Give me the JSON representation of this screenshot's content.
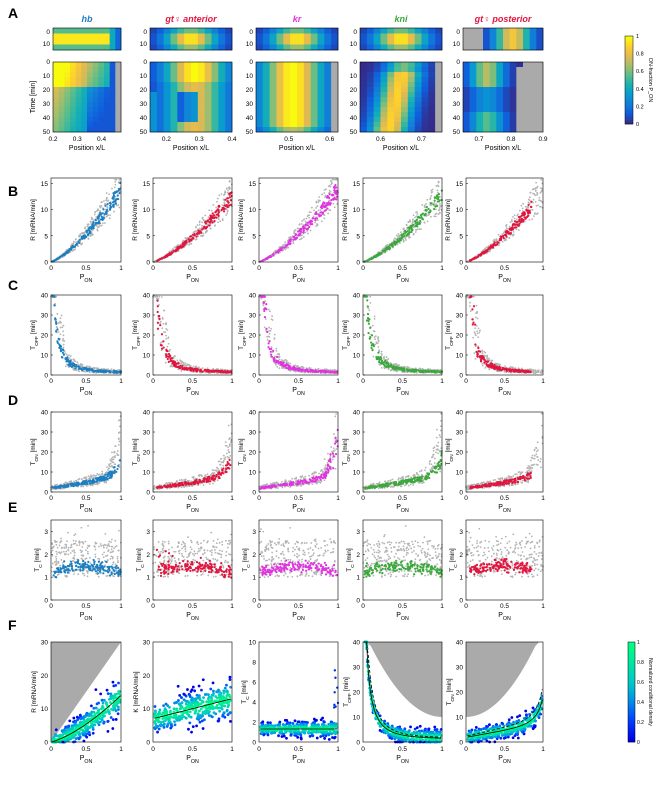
{
  "figure": {
    "panel_letters": [
      "A",
      "B",
      "C",
      "D",
      "E",
      "F"
    ],
    "gene_titles": [
      {
        "text": "hb",
        "color": "#1b7fc1"
      },
      {
        "text": "gt♀ anterior",
        "color": "#e0163f"
      },
      {
        "text": "kr",
        "color": "#e034e0"
      },
      {
        "text": "kni",
        "color": "#3aa83a"
      },
      {
        "text": "gt♀ posterior",
        "color": "#e0163f"
      }
    ],
    "gene_colors": [
      "#1b7fc1",
      "#e0163f",
      "#e034e0",
      "#3aa83a",
      "#e0163f"
    ],
    "background_color": "#aaaaaa",
    "colorbar_A": {
      "label": "ON-fraction P_ON",
      "ticks": [
        "0",
        "0.2",
        "0.4",
        "0.6",
        "0.8",
        "1"
      ]
    },
    "colorbar_F": {
      "label": "Normalized conditional density",
      "ticks": [
        "0",
        "0.2",
        "0.4",
        "0.6",
        "0.8",
        "1"
      ]
    }
  },
  "chart_data": [
    {
      "type": "heatmap",
      "row": "A",
      "gene": "hb",
      "xlabel": "Position x/L",
      "ylabel": "Time [min]",
      "xlim": [
        0.2,
        0.48
      ],
      "xticks": [
        "0.2",
        "0.3",
        "0.4"
      ],
      "top_yticks": [
        "0",
        "10"
      ],
      "bottom_yticks": [
        "0",
        "10",
        "20",
        "30",
        "40",
        "50"
      ]
    },
    {
      "type": "heatmap",
      "row": "A",
      "gene": "gt♀ anterior",
      "xlabel": "Position x/L",
      "ylabel": "",
      "xlim": [
        0.15,
        0.4
      ],
      "xticks": [
        "0.2",
        "0.3",
        "0.4"
      ],
      "top_yticks": [
        "0",
        "10"
      ],
      "bottom_yticks": [
        "0",
        "10",
        "20",
        "30",
        "40",
        "50"
      ]
    },
    {
      "type": "heatmap",
      "row": "A",
      "gene": "kr",
      "xlabel": "Position x/L",
      "ylabel": "",
      "xlim": [
        0.42,
        0.62
      ],
      "xticks": [
        "0.5",
        "0.6"
      ],
      "top_yticks": [
        "0",
        "10"
      ],
      "bottom_yticks": [
        "0",
        "10",
        "20",
        "30",
        "40",
        "50"
      ]
    },
    {
      "type": "heatmap",
      "row": "A",
      "gene": "kni",
      "xlabel": "Position x/L",
      "ylabel": "",
      "xlim": [
        0.55,
        0.75
      ],
      "xticks": [
        "0.6",
        "0.7"
      ],
      "top_yticks": [
        "0",
        "10"
      ],
      "bottom_yticks": [
        "0",
        "10",
        "20",
        "30",
        "40",
        "50"
      ]
    },
    {
      "type": "heatmap",
      "row": "A",
      "gene": "gt♀ posterior",
      "xlabel": "Position x/L",
      "ylabel": "",
      "xlim": [
        0.65,
        0.9
      ],
      "xticks": [
        "0.7",
        "0.8",
        "0.9"
      ],
      "top_yticks": [
        "0",
        "10"
      ],
      "bottom_yticks": [
        "0",
        "10",
        "20",
        "30",
        "40",
        "50"
      ]
    },
    {
      "type": "scatter",
      "row": "B",
      "ylabel": "R [mRNA/min]",
      "xlabel": "P_ON",
      "xlim": [
        0,
        1
      ],
      "ylim": [
        0,
        16
      ],
      "xticks": [
        "0",
        "0.5",
        "1"
      ],
      "yticks": [
        "0",
        "5",
        "10",
        "15"
      ]
    },
    {
      "type": "scatter",
      "row": "C",
      "ylabel": "T_OFF [min]",
      "xlabel": "P_ON",
      "xlim": [
        0,
        1
      ],
      "ylim": [
        0,
        40
      ],
      "xticks": [
        "0",
        "0.5",
        "1"
      ],
      "yticks": [
        "0",
        "10",
        "20",
        "30",
        "40"
      ]
    },
    {
      "type": "scatter",
      "row": "D",
      "ylabel": "T_ON [min]",
      "xlabel": "P_ON",
      "xlim": [
        0,
        1
      ],
      "ylim": [
        0,
        40
      ],
      "xticks": [
        "0",
        "0.5",
        "1"
      ],
      "yticks": [
        "0",
        "10",
        "20",
        "30",
        "40"
      ]
    },
    {
      "type": "scatter",
      "row": "E",
      "ylabel": "T_C [min]",
      "xlabel": "P_ON",
      "xlim": [
        0,
        1
      ],
      "ylim": [
        0,
        3.5
      ],
      "xticks": [
        "0",
        "0.5",
        "1"
      ],
      "yticks": [
        "0",
        "1",
        "2",
        "3"
      ]
    },
    {
      "type": "heatmap",
      "row": "F",
      "panels": [
        {
          "ylabel": "R [mRNA/min]",
          "xlabel": "P_ON",
          "ylim": [
            0,
            30
          ],
          "yticks": [
            "0",
            "10",
            "20",
            "30"
          ],
          "xticks": [
            "0",
            "0.5",
            "1"
          ]
        },
        {
          "ylabel": "K [mRNA/min]",
          "xlabel": "P_ON",
          "ylim": [
            0,
            30
          ],
          "yticks": [
            "0",
            "10",
            "20",
            "30"
          ],
          "xticks": [
            "0",
            "0.5",
            "1"
          ]
        },
        {
          "ylabel": "T_C [min]",
          "xlabel": "P_ON",
          "ylim": [
            0,
            10
          ],
          "yticks": [
            "0",
            "2",
            "4",
            "6",
            "8",
            "10"
          ],
          "xticks": [
            "0",
            "0.5",
            "1"
          ]
        },
        {
          "ylabel": "T_OFF [min]",
          "xlabel": "P_ON",
          "ylim": [
            0,
            40
          ],
          "yticks": [
            "0",
            "10",
            "20",
            "30",
            "40"
          ],
          "xticks": [
            "0",
            "0.5",
            "1"
          ]
        },
        {
          "ylabel": "T_ON [min]",
          "xlabel": "P_ON",
          "ylim": [
            0,
            40
          ],
          "yticks": [
            "0",
            "10",
            "20",
            "30",
            "40"
          ],
          "xticks": [
            "0",
            "0.5",
            "1"
          ]
        }
      ]
    }
  ]
}
